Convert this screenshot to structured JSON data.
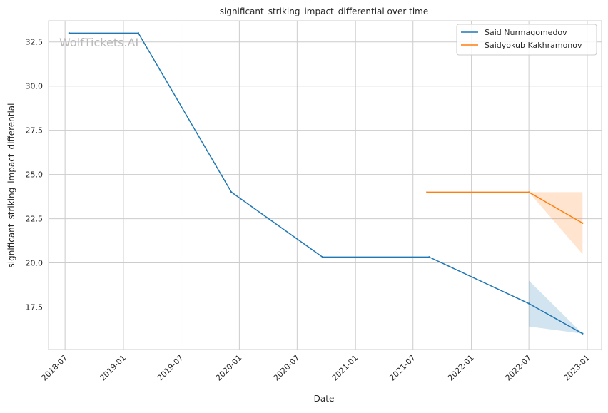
{
  "chart_data": {
    "type": "line",
    "title": "significant_striking_impact_differential over time",
    "xlabel": "Date",
    "ylabel": "significant_striking_impact_differential",
    "watermark": "WolfTickets.AI",
    "x_axis": {
      "type": "date",
      "range": [
        "2018-05-10",
        "2023-02-15"
      ],
      "ticks": [
        "2018-07",
        "2019-01",
        "2019-07",
        "2020-01",
        "2020-07",
        "2021-01",
        "2021-07",
        "2022-01",
        "2022-07",
        "2023-01"
      ]
    },
    "y_axis": {
      "range": [
        15.1,
        33.7
      ],
      "ticks": [
        "17.5",
        "20.0",
        "22.5",
        "25.0",
        "27.5",
        "30.0",
        "32.5"
      ]
    },
    "grid": true,
    "legend_position": "top-right",
    "series": [
      {
        "name": "Said Nurmagomedov",
        "color": "#1f77b4",
        "points": [
          {
            "x": "2018-07-14",
            "y": 33.0
          },
          {
            "x": "2019-02-17",
            "y": 33.0
          },
          {
            "x": "2019-12-07",
            "y": 24.0
          },
          {
            "x": "2020-09-19",
            "y": 20.33
          },
          {
            "x": "2021-08-21",
            "y": 20.33
          },
          {
            "x": "2022-07-01",
            "y": 17.7
          },
          {
            "x": "2022-12-17",
            "y": 16.0
          }
        ],
        "band": [
          {
            "x": "2022-07-01",
            "low": 16.4,
            "high": 19.0
          },
          {
            "x": "2022-12-17",
            "low": 16.0,
            "high": 16.0
          }
        ]
      },
      {
        "name": "Saidyokub Kakhramonov",
        "color": "#ff7f0e",
        "points": [
          {
            "x": "2021-08-14",
            "y": 24.0
          },
          {
            "x": "2022-07-01",
            "y": 24.0
          },
          {
            "x": "2022-12-17",
            "y": 22.25
          }
        ],
        "band": [
          {
            "x": "2022-07-01",
            "low": 24.0,
            "high": 24.0
          },
          {
            "x": "2022-12-17",
            "low": 20.5,
            "high": 24.0
          }
        ]
      }
    ]
  }
}
